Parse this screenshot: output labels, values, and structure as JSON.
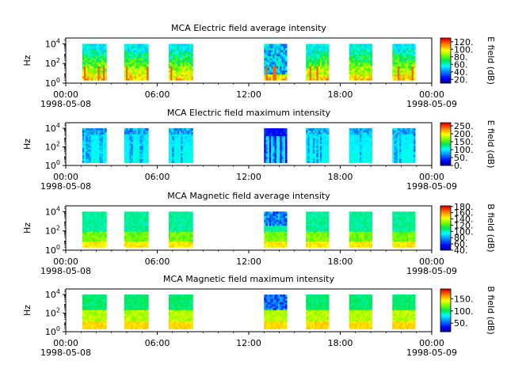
{
  "chart_data": [
    {
      "type": "heatmap",
      "title": "MCA  Electric field average intensity",
      "ylabel": "Hz",
      "yscale": "log",
      "yticks": [
        {
          "v": 0,
          "label": "10^0"
        },
        {
          "v": 2,
          "label": "10^2"
        },
        {
          "v": 4,
          "label": "10^4"
        }
      ],
      "xticks": [
        {
          "h": 0,
          "label": "00:00",
          "date": "1998-05-08"
        },
        {
          "h": 6,
          "label": "06:00"
        },
        {
          "h": 12,
          "label": "12:00"
        },
        {
          "h": 18,
          "label": "18:00"
        },
        {
          "h": 24,
          "label": "00:00",
          "date": "1998-05-09"
        }
      ],
      "xlim_hours": [
        0,
        24
      ],
      "ylim_log": [
        0,
        4.6
      ],
      "cbar_label": "E field (dB)",
      "cbar_range": [
        10,
        130
      ],
      "cbar_ticks": [
        "20.",
        "40.",
        "60.",
        "80.",
        "100.",
        "120."
      ],
      "cbar_tick_values": [
        20,
        40,
        60,
        80,
        100,
        120
      ],
      "colormap": "jet-like"
    },
    {
      "type": "heatmap",
      "title": "MCA  Electric field maximum intensity",
      "ylabel": "Hz",
      "yscale": "log",
      "yticks": [
        {
          "v": 0,
          "label": "10^0"
        },
        {
          "v": 2,
          "label": "10^2"
        },
        {
          "v": 4,
          "label": "10^4"
        }
      ],
      "xticks": [
        {
          "h": 0,
          "label": "00:00",
          "date": "1998-05-08"
        },
        {
          "h": 6,
          "label": "06:00"
        },
        {
          "h": 12,
          "label": "12:00"
        },
        {
          "h": 18,
          "label": "18:00"
        },
        {
          "h": 24,
          "label": "00:00",
          "date": "1998-05-09"
        }
      ],
      "xlim_hours": [
        0,
        24
      ],
      "ylim_log": [
        0,
        4.6
      ],
      "cbar_label": "E field (dB)",
      "cbar_range": [
        0,
        270
      ],
      "cbar_ticks": [
        "0.",
        "50.",
        "100.",
        "150.",
        "200.",
        "250."
      ],
      "cbar_tick_values": [
        0,
        50,
        100,
        150,
        200,
        250
      ],
      "colormap": "jet-like"
    },
    {
      "type": "heatmap",
      "title": "MCA  Magnetic field average intensity",
      "ylabel": "Hz",
      "yscale": "log",
      "yticks": [
        {
          "v": 0,
          "label": "10^0"
        },
        {
          "v": 2,
          "label": "10^2"
        },
        {
          "v": 4,
          "label": "10^4"
        }
      ],
      "xticks": [
        {
          "h": 0,
          "label": "00:00",
          "date": "1998-05-08"
        },
        {
          "h": 6,
          "label": "06:00"
        },
        {
          "h": 12,
          "label": "12:00"
        },
        {
          "h": 18,
          "label": "18:00"
        },
        {
          "h": 24,
          "label": "00:00",
          "date": "1998-05-09"
        }
      ],
      "xlim_hours": [
        0,
        24
      ],
      "ylim_log": [
        0,
        4.6
      ],
      "cbar_label": "B field (dB)",
      "cbar_range": [
        40,
        182
      ],
      "cbar_ticks": [
        "40.",
        "60.",
        "80.",
        "100.",
        "120.",
        "140.",
        "160.",
        "180."
      ],
      "cbar_tick_values": [
        40,
        60,
        80,
        100,
        120,
        140,
        160,
        180
      ],
      "colormap": "jet-like"
    },
    {
      "type": "heatmap",
      "title": "MCA  Magnetic field maximum intensity",
      "ylabel": "Hz",
      "yscale": "log",
      "yticks": [
        {
          "v": 0,
          "label": "10^0"
        },
        {
          "v": 2,
          "label": "10^2"
        },
        {
          "v": 4,
          "label": "10^4"
        }
      ],
      "xticks": [
        {
          "h": 0,
          "label": "00:00",
          "date": "1998-05-08"
        },
        {
          "h": 6,
          "label": "06:00"
        },
        {
          "h": 12,
          "label": "12:00"
        },
        {
          "h": 18,
          "label": "18:00"
        },
        {
          "h": 24,
          "label": "00:00",
          "date": "1998-05-09"
        }
      ],
      "xlim_hours": [
        0,
        24
      ],
      "ylim_log": [
        0,
        4.6
      ],
      "cbar_label": "B field (dB)",
      "cbar_range": [
        15,
        190
      ],
      "cbar_ticks": [
        "50.",
        "100.",
        "150."
      ],
      "cbar_tick_values": [
        50,
        100,
        150
      ],
      "colormap": "jet-like"
    }
  ],
  "segments": [
    {
      "start": "01:05",
      "end": "02:40"
    },
    {
      "start": "03:50",
      "end": "05:25"
    },
    {
      "start": "06:45",
      "end": "08:20"
    },
    {
      "start": "13:00",
      "end": "14:30"
    },
    {
      "start": "15:45",
      "end": "17:15"
    },
    {
      "start": "18:35",
      "end": "20:05"
    },
    {
      "start": "21:25",
      "end": "22:55"
    }
  ]
}
